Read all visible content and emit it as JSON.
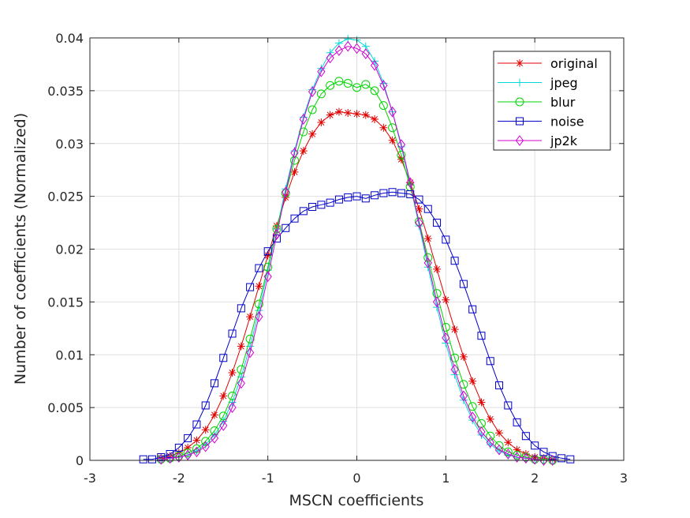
{
  "chart_data": {
    "type": "line",
    "title": "",
    "xlabel": "MSCN coefficients",
    "ylabel": "Number of coefficients (Normalized)",
    "xlim": [
      -3,
      3
    ],
    "ylim": [
      0,
      0.04
    ],
    "xticks": [
      -3,
      -2,
      -1,
      0,
      1,
      2,
      3
    ],
    "xtick_labels": [
      "-3",
      "-2",
      "-1",
      "0",
      "1",
      "2",
      "3"
    ],
    "yticks": [
      0,
      0.005,
      0.01,
      0.015,
      0.02,
      0.025,
      0.03,
      0.035,
      0.04
    ],
    "ytick_labels": [
      "0",
      "0.005",
      "0.01",
      "0.015",
      "0.02",
      "0.025",
      "0.03",
      "0.035",
      "0.04"
    ],
    "grid": true,
    "legend_position": "top-right",
    "series": [
      {
        "name": "original",
        "color": "#e00000",
        "marker": "asterisk",
        "x": [
          -2.2,
          -2.1,
          -2.0,
          -1.9,
          -1.8,
          -1.7,
          -1.6,
          -1.5,
          -1.4,
          -1.3,
          -1.2,
          -1.1,
          -1.0,
          -0.9,
          -0.8,
          -0.7,
          -0.6,
          -0.5,
          -0.4,
          -0.3,
          -0.2,
          -0.1,
          0.0,
          0.1,
          0.2,
          0.3,
          0.4,
          0.5,
          0.6,
          0.7,
          0.8,
          0.9,
          1.0,
          1.1,
          1.2,
          1.3,
          1.4,
          1.5,
          1.6,
          1.7,
          1.8,
          1.9,
          2.0,
          2.1,
          2.2
        ],
        "y": [
          0.0002,
          0.0004,
          0.0007,
          0.0012,
          0.0019,
          0.0029,
          0.0043,
          0.0061,
          0.0083,
          0.0108,
          0.0136,
          0.0165,
          0.0194,
          0.0222,
          0.0249,
          0.0273,
          0.0293,
          0.0309,
          0.032,
          0.0327,
          0.033,
          0.0329,
          0.0328,
          0.0327,
          0.0323,
          0.0315,
          0.0303,
          0.0285,
          0.0263,
          0.0238,
          0.021,
          0.0181,
          0.0152,
          0.0124,
          0.0098,
          0.0075,
          0.0055,
          0.0039,
          0.0026,
          0.0017,
          0.001,
          0.0006,
          0.0003,
          0.0002,
          0.0001
        ]
      },
      {
        "name": "jpeg",
        "color": "#00d8d8",
        "marker": "plus",
        "x": [
          -2.2,
          -2.1,
          -2.0,
          -1.9,
          -1.8,
          -1.7,
          -1.6,
          -1.5,
          -1.4,
          -1.3,
          -1.2,
          -1.1,
          -1.0,
          -0.9,
          -0.8,
          -0.7,
          -0.6,
          -0.5,
          -0.4,
          -0.3,
          -0.2,
          -0.1,
          0.0,
          0.1,
          0.2,
          0.3,
          0.4,
          0.5,
          0.6,
          0.7,
          0.8,
          0.9,
          1.0,
          1.1,
          1.2,
          1.3,
          1.4,
          1.5,
          1.6,
          1.7,
          1.8,
          1.9,
          2.0,
          2.1,
          2.2
        ],
        "y": [
          0.0001,
          0.0002,
          0.0003,
          0.0005,
          0.0009,
          0.0015,
          0.0024,
          0.0037,
          0.0055,
          0.0079,
          0.0108,
          0.0142,
          0.018,
          0.0219,
          0.0257,
          0.0293,
          0.0325,
          0.0351,
          0.0371,
          0.0386,
          0.0395,
          0.0399,
          0.0398,
          0.0392,
          0.0378,
          0.0357,
          0.033,
          0.0297,
          0.0261,
          0.0222,
          0.0183,
          0.0145,
          0.0111,
          0.0081,
          0.0057,
          0.0038,
          0.0024,
          0.0015,
          0.0009,
          0.0005,
          0.0003,
          0.0002,
          0.0001,
          0.0,
          0.0
        ]
      },
      {
        "name": "blur",
        "color": "#00d400",
        "marker": "circle",
        "x": [
          -2.2,
          -2.1,
          -2.0,
          -1.9,
          -1.8,
          -1.7,
          -1.6,
          -1.5,
          -1.4,
          -1.3,
          -1.2,
          -1.1,
          -1.0,
          -0.9,
          -0.8,
          -0.7,
          -0.6,
          -0.5,
          -0.4,
          -0.3,
          -0.2,
          -0.1,
          0.0,
          0.1,
          0.2,
          0.3,
          0.4,
          0.5,
          0.6,
          0.7,
          0.8,
          0.9,
          1.0,
          1.1,
          1.2,
          1.3,
          1.4,
          1.5,
          1.6,
          1.7,
          1.8,
          1.9,
          2.0,
          2.1,
          2.2
        ],
        "y": [
          0.0001,
          0.0002,
          0.0004,
          0.0007,
          0.0011,
          0.0018,
          0.0028,
          0.0042,
          0.0061,
          0.0086,
          0.0115,
          0.0148,
          0.0183,
          0.0219,
          0.0253,
          0.0284,
          0.0311,
          0.0332,
          0.0347,
          0.0355,
          0.0359,
          0.0357,
          0.0353,
          0.0356,
          0.035,
          0.0336,
          0.0315,
          0.0289,
          0.0259,
          0.0226,
          0.0192,
          0.0158,
          0.0126,
          0.0097,
          0.0072,
          0.0051,
          0.0035,
          0.0023,
          0.0014,
          0.0008,
          0.0005,
          0.0003,
          0.0001,
          0.0001,
          0.0
        ]
      },
      {
        "name": "noise",
        "color": "#0000c8",
        "marker": "square",
        "x": [
          -2.4,
          -2.3,
          -2.2,
          -2.1,
          -2.0,
          -1.9,
          -1.8,
          -1.7,
          -1.6,
          -1.5,
          -1.4,
          -1.3,
          -1.2,
          -1.1,
          -1.0,
          -0.9,
          -0.8,
          -0.7,
          -0.6,
          -0.5,
          -0.4,
          -0.3,
          -0.2,
          -0.1,
          0.0,
          0.1,
          0.2,
          0.3,
          0.4,
          0.5,
          0.6,
          0.7,
          0.8,
          0.9,
          1.0,
          1.1,
          1.2,
          1.3,
          1.4,
          1.5,
          1.6,
          1.7,
          1.8,
          1.9,
          2.0,
          2.1,
          2.2,
          2.3,
          2.4
        ],
        "y": [
          0.0001,
          0.0001,
          0.0003,
          0.0006,
          0.0012,
          0.0021,
          0.0034,
          0.0052,
          0.0073,
          0.0097,
          0.012,
          0.0144,
          0.0164,
          0.0182,
          0.0198,
          0.021,
          0.022,
          0.0229,
          0.0236,
          0.024,
          0.0242,
          0.0244,
          0.0247,
          0.0249,
          0.025,
          0.0248,
          0.0251,
          0.0253,
          0.0254,
          0.0253,
          0.0252,
          0.0247,
          0.0238,
          0.0225,
          0.0209,
          0.0189,
          0.0167,
          0.0143,
          0.0118,
          0.0094,
          0.0071,
          0.0052,
          0.0036,
          0.0023,
          0.0014,
          0.0008,
          0.0004,
          0.0002,
          0.0001
        ]
      },
      {
        "name": "jp2k",
        "color": "#d000d0",
        "marker": "diamond",
        "x": [
          -2.2,
          -2.1,
          -2.0,
          -1.9,
          -1.8,
          -1.7,
          -1.6,
          -1.5,
          -1.4,
          -1.3,
          -1.2,
          -1.1,
          -1.0,
          -0.9,
          -0.8,
          -0.7,
          -0.6,
          -0.5,
          -0.4,
          -0.3,
          -0.2,
          -0.1,
          0.0,
          0.1,
          0.2,
          0.3,
          0.4,
          0.5,
          0.6,
          0.7,
          0.8,
          0.9,
          1.0,
          1.1,
          1.2,
          1.3,
          1.4,
          1.5,
          1.6,
          1.7,
          1.8,
          1.9,
          2.0,
          2.1,
          2.2
        ],
        "y": [
          0.0001,
          0.0002,
          0.0003,
          0.0005,
          0.0008,
          0.0013,
          0.0021,
          0.0033,
          0.005,
          0.0073,
          0.0102,
          0.0136,
          0.0174,
          0.0214,
          0.0254,
          0.0291,
          0.0323,
          0.0349,
          0.0368,
          0.0381,
          0.0388,
          0.0392,
          0.039,
          0.0385,
          0.0374,
          0.0355,
          0.033,
          0.0299,
          0.0263,
          0.0225,
          0.0187,
          0.015,
          0.0116,
          0.0086,
          0.0061,
          0.0041,
          0.0027,
          0.0017,
          0.001,
          0.0006,
          0.0003,
          0.0002,
          0.0001,
          0.0,
          0.0
        ]
      }
    ]
  }
}
